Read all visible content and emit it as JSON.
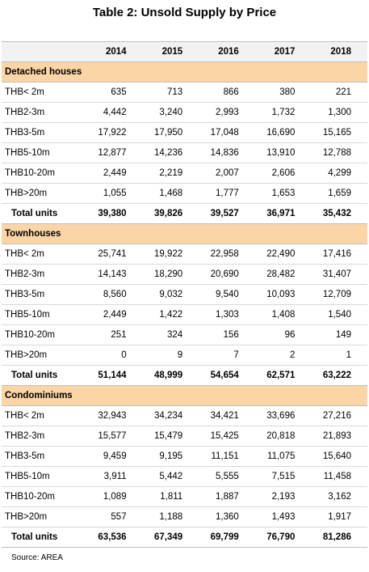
{
  "title": "Table 2: Unsold Supply by Price",
  "table": {
    "columns": [
      "2014",
      "2015",
      "2016",
      "2017",
      "2018"
    ],
    "sections": [
      {
        "name": "Detached houses",
        "rows": [
          {
            "label": "THB< 2m",
            "values": [
              "635",
              "713",
              "866",
              "380",
              "221"
            ]
          },
          {
            "label": "THB2-3m",
            "values": [
              "4,442",
              "3,240",
              "2,993",
              "1,732",
              "1,300"
            ]
          },
          {
            "label": "THB3-5m",
            "values": [
              "17,922",
              "17,950",
              "17,048",
              "16,690",
              "15,165"
            ]
          },
          {
            "label": "THB5-10m",
            "values": [
              "12,877",
              "14,236",
              "14,836",
              "13,910",
              "12,788"
            ]
          },
          {
            "label": "THB10-20m",
            "values": [
              "2,449",
              "2,219",
              "2,007",
              "2,606",
              "4,299"
            ]
          },
          {
            "label": "THB>20m",
            "values": [
              "1,055",
              "1,468",
              "1,777",
              "1,653",
              "1,659"
            ]
          }
        ],
        "total": {
          "label": "Total units",
          "values": [
            "39,380",
            "39,826",
            "39,527",
            "36,971",
            "35,432"
          ]
        }
      },
      {
        "name": "Townhouses",
        "rows": [
          {
            "label": "THB< 2m",
            "values": [
              "25,741",
              "19,922",
              "22,958",
              "22,490",
              "17,416"
            ]
          },
          {
            "label": "THB2-3m",
            "values": [
              "14,143",
              "18,290",
              "20,690",
              "28,482",
              "31,407"
            ]
          },
          {
            "label": "THB3-5m",
            "values": [
              "8,560",
              "9,032",
              "9,540",
              "10,093",
              "12,709"
            ]
          },
          {
            "label": "THB5-10m",
            "values": [
              "2,449",
              "1,422",
              "1,303",
              "1,408",
              "1,540"
            ]
          },
          {
            "label": "THB10-20m",
            "values": [
              "251",
              "324",
              "156",
              "96",
              "149"
            ]
          },
          {
            "label": "THB>20m",
            "values": [
              "0",
              "9",
              "7",
              "2",
              "1"
            ]
          }
        ],
        "total": {
          "label": "Total units",
          "values": [
            "51,144",
            "48,999",
            "54,654",
            "62,571",
            "63,222"
          ]
        }
      },
      {
        "name": "Condominiums",
        "rows": [
          {
            "label": "THB< 2m",
            "values": [
              "32,943",
              "34,234",
              "34,421",
              "33,696",
              "27,216"
            ]
          },
          {
            "label": "THB2-3m",
            "values": [
              "15,577",
              "15,479",
              "15,425",
              "20,818",
              "21,893"
            ]
          },
          {
            "label": "THB3-5m",
            "values": [
              "9,459",
              "9,195",
              "11,151",
              "11,075",
              "15,640"
            ]
          },
          {
            "label": "THB5-10m",
            "values": [
              "3,911",
              "5,442",
              "5,555",
              "7,515",
              "11,458"
            ]
          },
          {
            "label": "THB10-20m",
            "values": [
              "1,089",
              "1,811",
              "1,887",
              "2,193",
              "3,162"
            ]
          },
          {
            "label": "THB>20m",
            "values": [
              "557",
              "1,188",
              "1,360",
              "1,493",
              "1,917"
            ]
          }
        ],
        "total": {
          "label": "Total units",
          "values": [
            "63,536",
            "67,349",
            "69,799",
            "76,790",
            "81,286"
          ]
        }
      }
    ]
  },
  "source": "Source: AREA"
}
